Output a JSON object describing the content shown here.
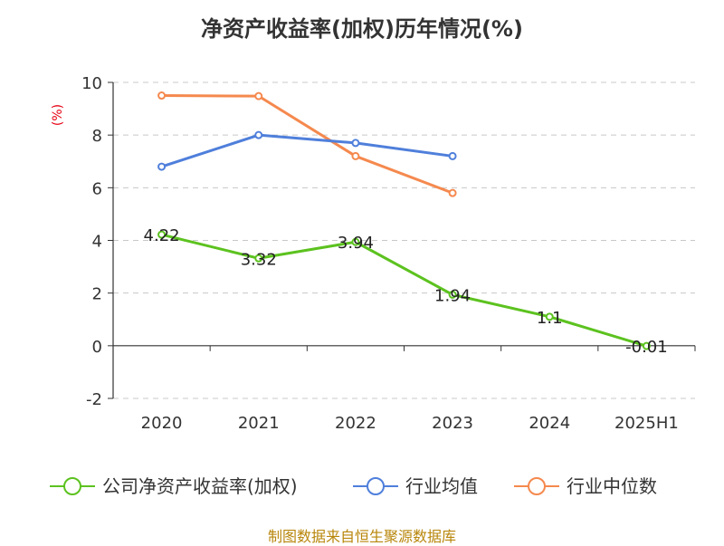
{
  "chart_data": {
    "type": "line",
    "title": "净资产收益率(加权)历年情况(%)",
    "unit_label": "(%)",
    "categories": [
      "2020",
      "2021",
      "2022",
      "2023",
      "2024",
      "2025H1"
    ],
    "ylim": [
      -2,
      10
    ],
    "yticks": [
      -2,
      0,
      2,
      4,
      6,
      8,
      10
    ],
    "grid": true,
    "legend_position": "bottom",
    "series": [
      {
        "name": "公司净资产收益率(加权)",
        "color": "#5cc21f",
        "values": [
          4.22,
          3.32,
          3.94,
          1.94,
          1.1,
          -0.01
        ],
        "labels": [
          "4.22",
          "3.32",
          "3.94",
          "1.94",
          "1.1",
          "-0.01"
        ]
      },
      {
        "name": "行业均值",
        "color": "#4f7fdb",
        "values": [
          6.8,
          8.0,
          7.7,
          7.2,
          null,
          null
        ]
      },
      {
        "name": "行业中位数",
        "color": "#f5894e",
        "values": [
          9.5,
          9.48,
          7.2,
          5.8,
          null,
          null
        ]
      }
    ]
  },
  "source_note": "制图数据来自恒生聚源数据库"
}
